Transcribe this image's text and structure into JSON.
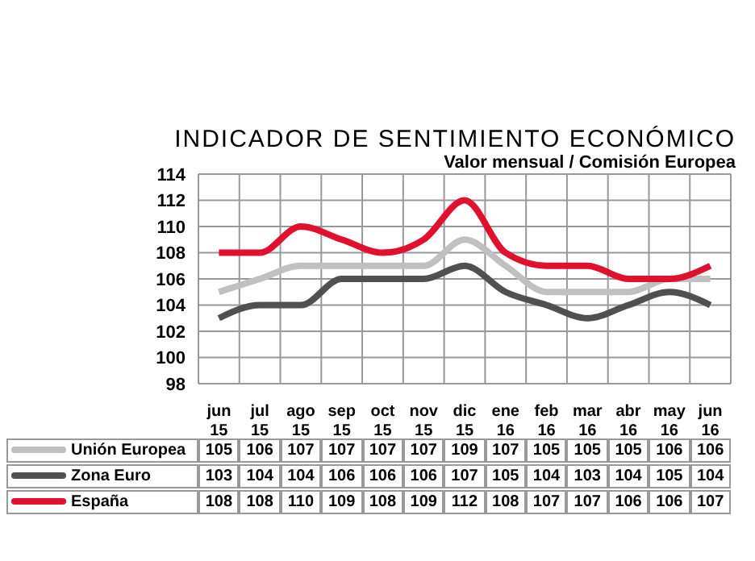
{
  "chart_data": {
    "type": "line",
    "title": "INDICADOR DE SENTIMIENTO ECONÓMICO",
    "subtitle": "Valor mensual / Comisión Europea",
    "categories": [
      "jun 15",
      "jul 15",
      "ago 15",
      "sep 15",
      "oct 15",
      "nov 15",
      "dic 15",
      "ene 16",
      "feb 16",
      "mar 16",
      "abr 16",
      "may 16",
      "jun 16"
    ],
    "series": [
      {
        "name": "Unión Europea",
        "color": "#c0c0c0",
        "values": [
          105,
          106,
          107,
          107,
          107,
          107,
          109,
          107,
          105,
          105,
          105,
          106,
          106
        ]
      },
      {
        "name": "Zona Euro",
        "color": "#505050",
        "values": [
          103,
          104,
          104,
          106,
          106,
          106,
          107,
          105,
          104,
          103,
          104,
          105,
          104
        ]
      },
      {
        "name": "España",
        "color": "#e0102f",
        "values": [
          108,
          108,
          110,
          109,
          108,
          109,
          112,
          108,
          107,
          107,
          106,
          106,
          107
        ]
      }
    ],
    "ylim": [
      98,
      114
    ],
    "yticks": [
      98,
      100,
      102,
      104,
      106,
      108,
      110,
      112,
      114
    ],
    "grid": true,
    "legend": "bottom",
    "data_labels": true
  }
}
